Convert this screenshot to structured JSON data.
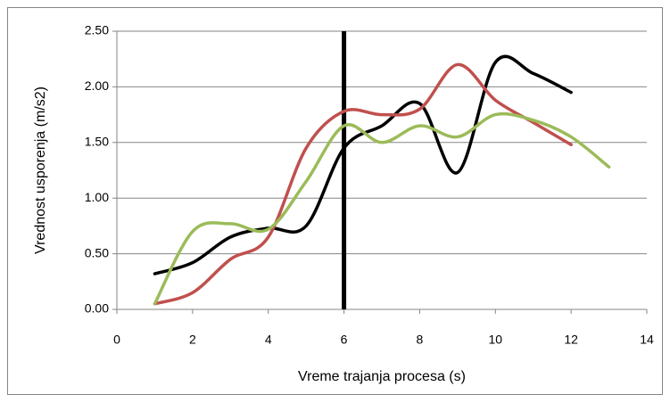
{
  "chart_data": {
    "type": "line",
    "smooth": true,
    "xlabel": "Vreme trajanja procesa (s)",
    "ylabel": "Vrednost usporenja (m/s2)",
    "xlim": [
      0,
      14
    ],
    "xticks": [
      0,
      2,
      4,
      6,
      8,
      10,
      12,
      14
    ],
    "ylim": [
      0,
      2.5
    ],
    "yticks": [
      {
        "value": 0,
        "label": "0.00"
      },
      {
        "value": 0.5,
        "label": "0.50"
      },
      {
        "value": 1,
        "label": "1.00"
      },
      {
        "value": 1.5,
        "label": "1.50"
      },
      {
        "value": 2,
        "label": "2.00"
      },
      {
        "value": 2.5,
        "label": "2.50"
      }
    ],
    "grid": true,
    "vline": {
      "x": 6,
      "color": "#000000"
    },
    "series": [
      {
        "color": "#000000",
        "x": [
          1,
          2,
          3,
          4,
          5,
          6,
          7,
          8,
          9,
          10,
          11,
          12
        ],
        "values": [
          0.32,
          0.42,
          0.65,
          0.73,
          0.75,
          1.45,
          1.65,
          1.85,
          1.23,
          2.22,
          2.12,
          1.95
        ]
      },
      {
        "color": "#c0504d",
        "x": [
          1,
          2,
          3,
          4,
          5,
          6,
          7,
          8,
          9,
          10,
          11,
          12
        ],
        "values": [
          0.05,
          0.15,
          0.45,
          0.65,
          1.45,
          1.78,
          1.75,
          1.8,
          2.2,
          1.88,
          1.68,
          1.48
        ]
      },
      {
        "color": "#9bbb59",
        "x": [
          1,
          2,
          3,
          4,
          5,
          6,
          7,
          8,
          9,
          10,
          11,
          12,
          13
        ],
        "values": [
          0.05,
          0.7,
          0.77,
          0.72,
          1.15,
          1.65,
          1.5,
          1.65,
          1.55,
          1.75,
          1.7,
          1.55,
          1.28
        ]
      }
    ]
  }
}
